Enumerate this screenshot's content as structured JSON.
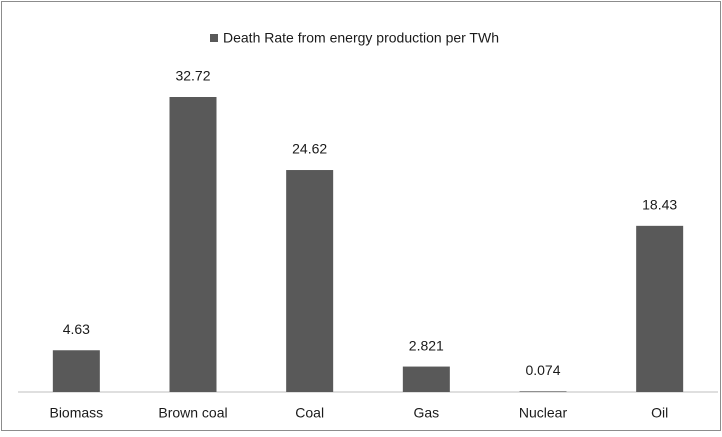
{
  "chart_data": {
    "type": "bar",
    "categories": [
      "Biomass",
      "Brown coal",
      "Coal",
      "Gas",
      "Nuclear",
      "Oil"
    ],
    "series": [
      {
        "name": "Death Rate from energy production per TWh",
        "color": "#595959",
        "values": [
          4.63,
          32.72,
          24.62,
          2.821,
          0.074,
          18.43
        ]
      }
    ],
    "legend": "top"
  }
}
